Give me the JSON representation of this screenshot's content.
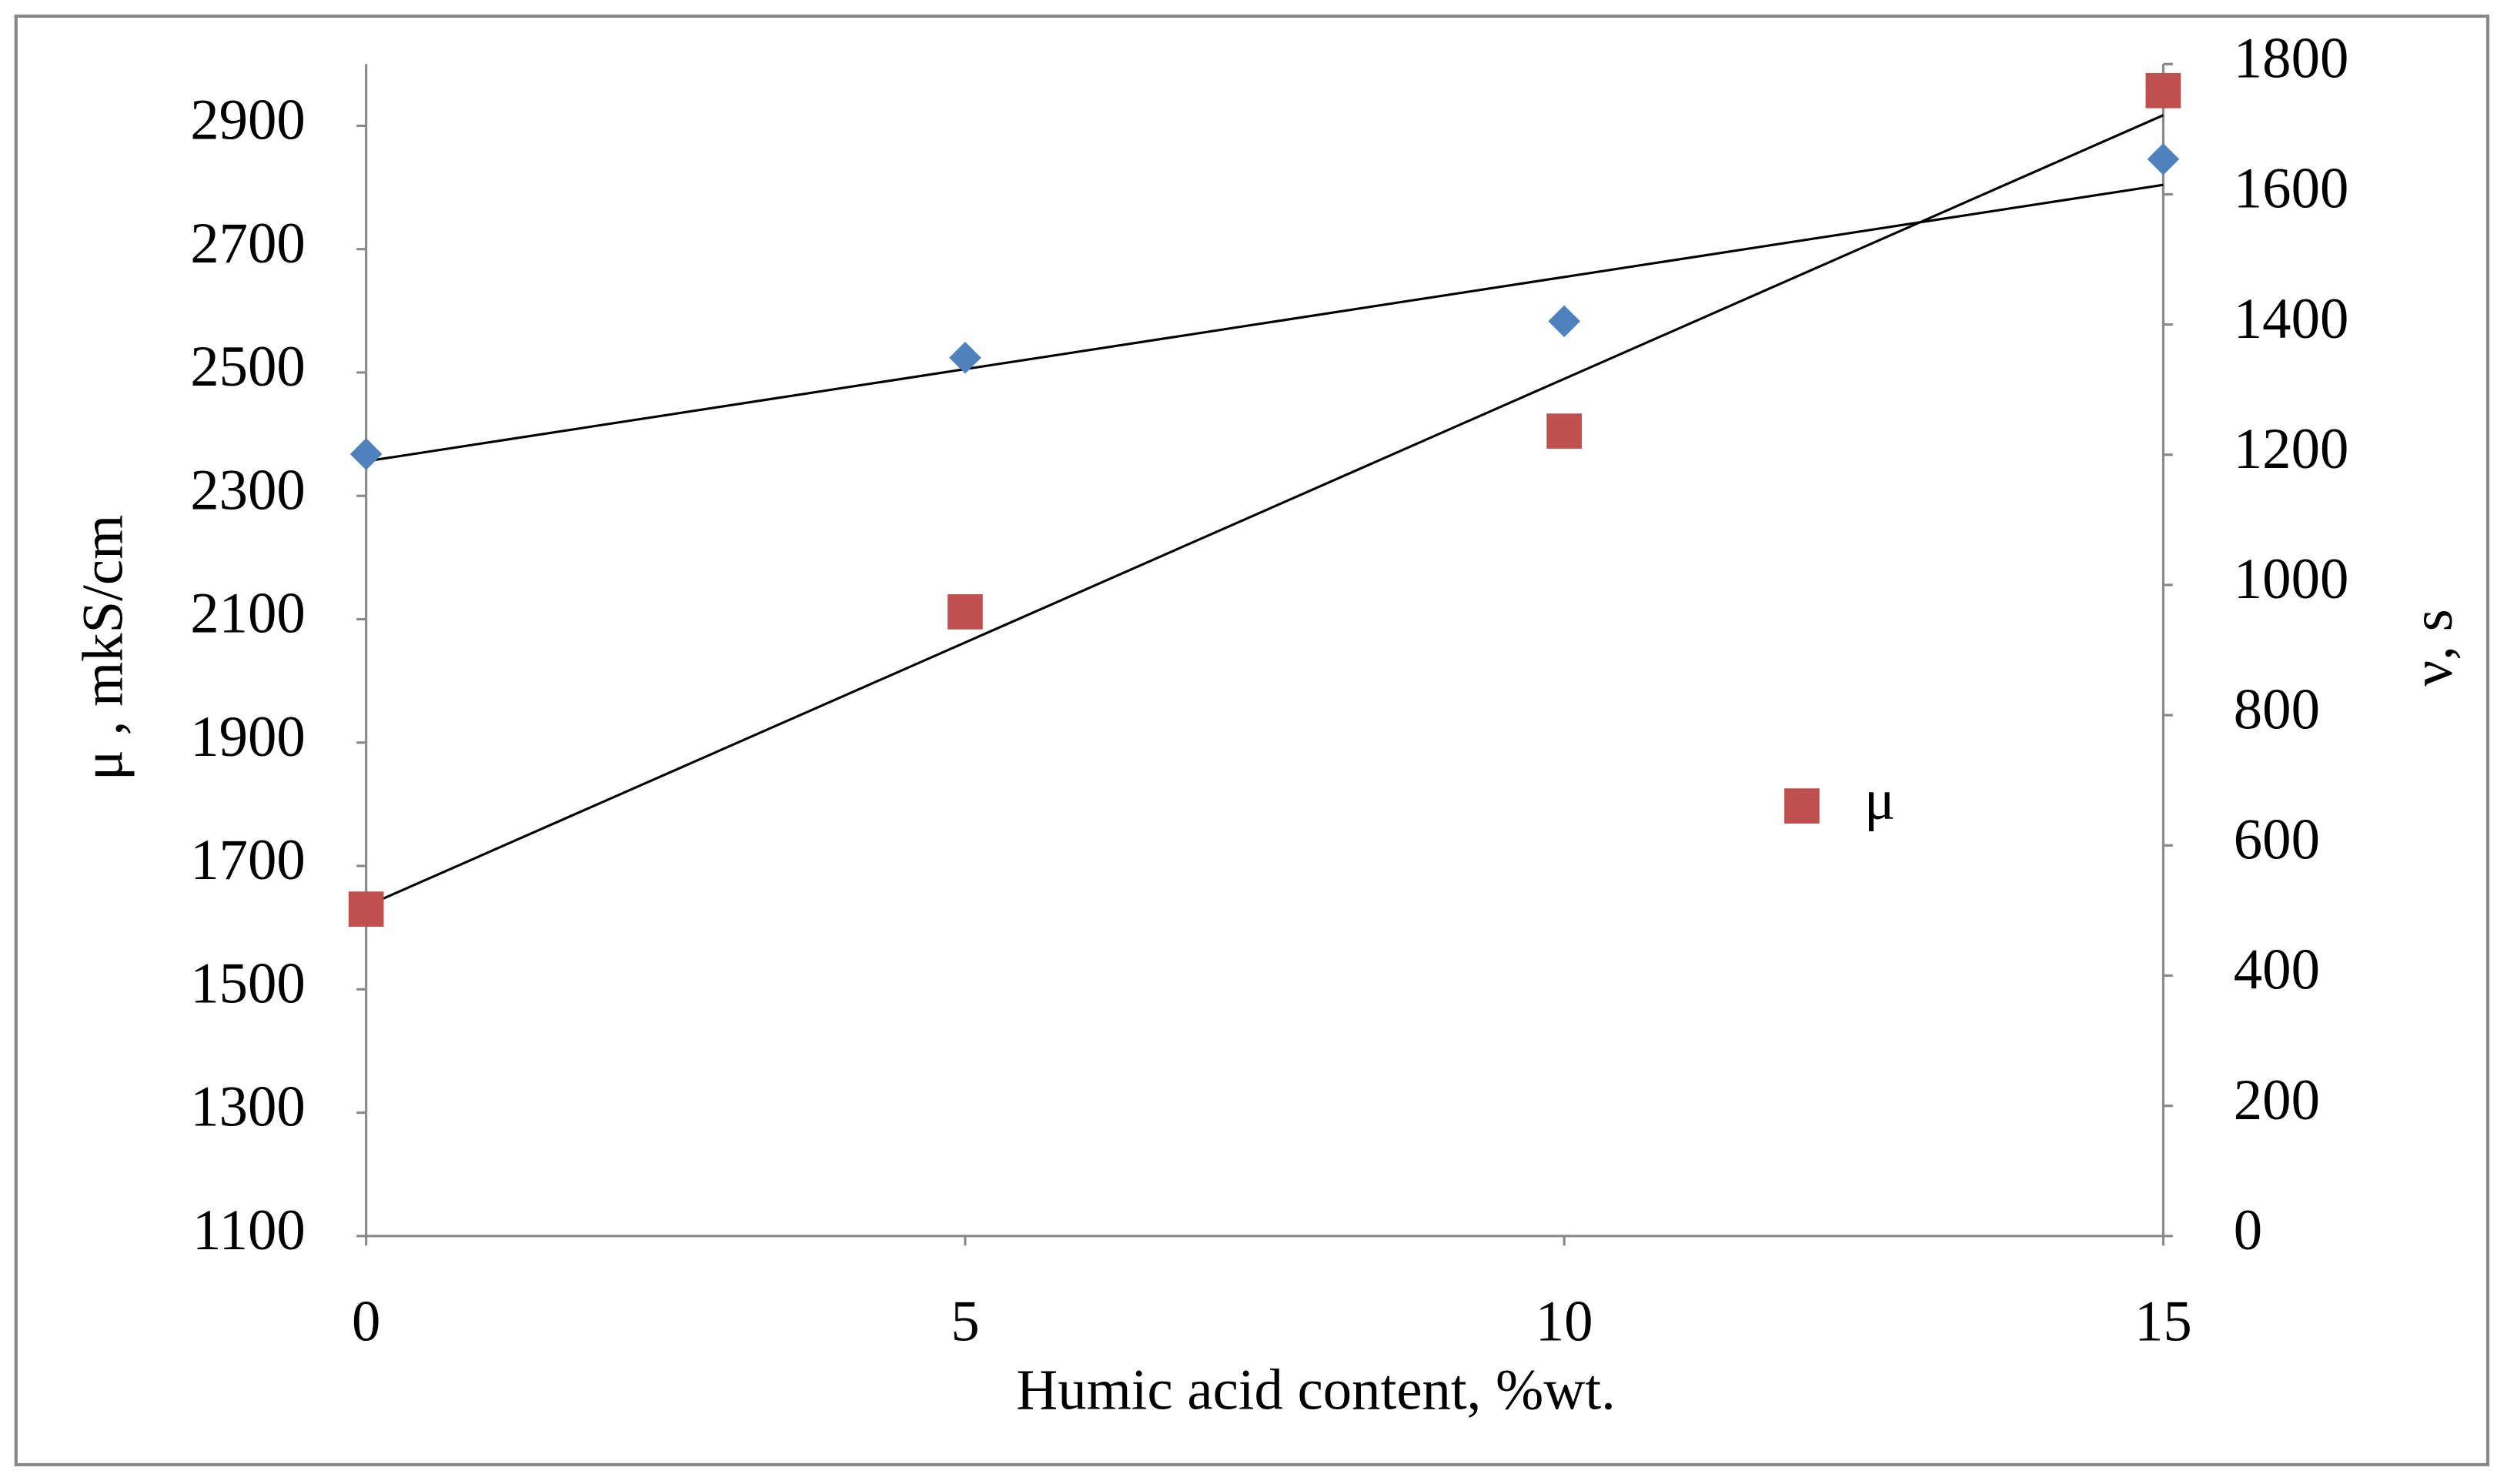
{
  "chart_data": {
    "type": "scatter",
    "x_label": "Humic acid content, %wt.",
    "y_label": "μ , mkS/cm",
    "y2_label": "ν, s",
    "x": [
      0,
      5,
      10,
      15
    ],
    "series": [
      {
        "name": "μ",
        "color": "#c0504d",
        "marker": "square",
        "values": [
          1630,
          2112,
          2405,
          2957
        ]
      },
      {
        "color": "#4f81bd",
        "marker": "diamond",
        "axis": "y2",
        "values": [
          1201,
          1349,
          1405,
          1654
        ]
      }
    ],
    "xlim": [
      0,
      15
    ],
    "xticks": [
      0,
      5,
      10,
      15
    ],
    "ylim": [
      1100,
      3000
    ],
    "yticks": [
      1100,
      1300,
      1500,
      1700,
      1900,
      2100,
      2300,
      2500,
      2700,
      2900
    ],
    "y2lim": [
      0,
      1800
    ],
    "y2ticks": [
      0,
      200,
      400,
      600,
      800,
      1000,
      1200,
      1400,
      1600,
      1800
    ],
    "trendline": true,
    "grid": false
  }
}
